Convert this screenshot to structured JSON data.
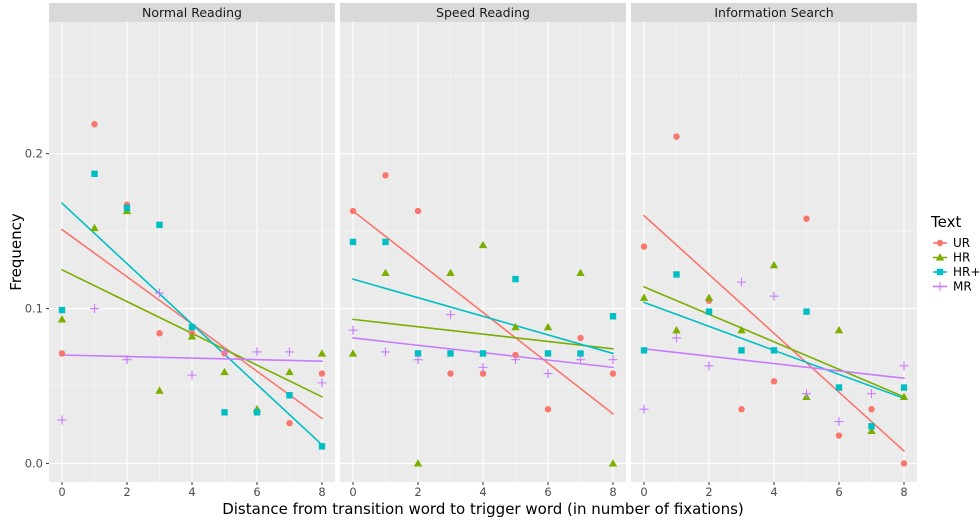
{
  "colors": {
    "UR": "#F8766D",
    "HR": "#7CAE00",
    "HR+": "#00BFC4",
    "MR": "#C77CFF",
    "panel_bg": "#EBEBEB",
    "strip_bg": "#D9D9D9",
    "grid_major": "#FFFFFF"
  },
  "markers": {
    "UR": "circle-icon",
    "HR": "triangle-icon",
    "HR+": "square-icon",
    "MR": "plus-icon"
  },
  "chart_data": {
    "type": "scatter",
    "xlabel": "Distance from transition word to trigger word (in number of fixations)",
    "ylabel": "Frequency",
    "xlim": [
      -0.4,
      8.4
    ],
    "ylim": [
      -0.012,
      0.285
    ],
    "x_ticks": [
      0,
      2,
      4,
      6,
      8
    ],
    "y_ticks": [
      0.0,
      0.1,
      0.2
    ],
    "y_tick_labels": [
      "0.0",
      "0.1",
      "0.2"
    ],
    "grid": true,
    "legend": {
      "title": "Text",
      "position": "right",
      "entries": [
        "UR",
        "HR",
        "HR+",
        "MR"
      ]
    },
    "x": [
      0,
      1,
      2,
      3,
      4,
      5,
      6,
      7,
      8
    ],
    "panels": [
      {
        "title": "Normal Reading",
        "series": [
          {
            "name": "UR",
            "values": [
              0.071,
              0.219,
              0.167,
              0.084,
              0.084,
              0.071,
              0.034,
              0.026,
              0.058
            ],
            "fit": [
              0.151,
              0.029
            ]
          },
          {
            "name": "HR",
            "values": [
              0.093,
              0.152,
              0.163,
              0.047,
              0.082,
              0.059,
              0.035,
              0.059,
              0.071
            ],
            "fit": [
              0.125,
              0.043
            ]
          },
          {
            "name": "HR+",
            "values": [
              0.099,
              0.187,
              0.165,
              0.154,
              0.088,
              0.033,
              0.033,
              0.044,
              0.011
            ],
            "fit": [
              0.168,
              0.012
            ]
          },
          {
            "name": "MR",
            "values": [
              0.028,
              0.1,
              0.067,
              0.11,
              0.057,
              0.072,
              0.072,
              0.072,
              0.052
            ],
            "fit": [
              0.07,
              0.066
            ]
          }
        ]
      },
      {
        "title": "Speed Reading",
        "series": [
          {
            "name": "UR",
            "values": [
              0.163,
              0.186,
              0.163,
              0.058,
              0.058,
              0.07,
              0.035,
              0.081,
              0.058
            ],
            "fit": [
              0.163,
              0.032
            ]
          },
          {
            "name": "HR",
            "values": [
              0.071,
              0.123,
              0.0,
              0.123,
              0.141,
              0.088,
              0.088,
              0.123,
              0.0
            ],
            "fit": [
              0.093,
              0.074
            ]
          },
          {
            "name": "HR+",
            "values": [
              0.143,
              0.143,
              0.071,
              0.071,
              0.071,
              0.119,
              0.071,
              0.071,
              0.095
            ],
            "fit": [
              0.119,
              0.071
            ]
          },
          {
            "name": "MR",
            "values": [
              0.086,
              0.072,
              0.067,
              0.096,
              0.062,
              0.067,
              0.058,
              0.067,
              0.067
            ],
            "fit": [
              0.081,
              0.062
            ]
          }
        ]
      },
      {
        "title": "Information Search",
        "series": [
          {
            "name": "UR",
            "values": [
              0.14,
              0.211,
              0.105,
              0.035,
              0.053,
              0.158,
              0.018,
              0.035,
              0.0
            ],
            "fit": [
              0.16,
              0.008
            ]
          },
          {
            "name": "HR",
            "values": [
              0.107,
              0.086,
              0.107,
              0.086,
              0.128,
              0.043,
              0.086,
              0.021,
              0.043
            ],
            "fit": [
              0.114,
              0.043
            ]
          },
          {
            "name": "HR+",
            "values": [
              0.073,
              0.122,
              0.098,
              0.073,
              0.073,
              0.098,
              0.049,
              0.024,
              0.049
            ],
            "fit": [
              0.104,
              0.042
            ]
          },
          {
            "name": "MR",
            "values": [
              0.035,
              0.081,
              0.063,
              0.117,
              0.108,
              0.045,
              0.027,
              0.045,
              0.063
            ],
            "fit": [
              0.074,
              0.055
            ]
          }
        ]
      }
    ]
  }
}
